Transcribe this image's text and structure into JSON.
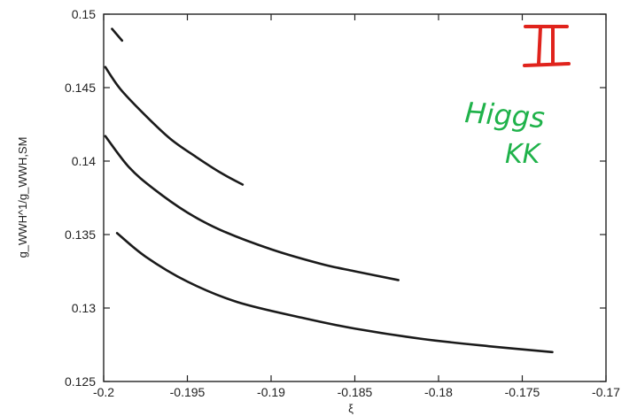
{
  "chart_data": {
    "type": "line",
    "title": "",
    "ylabel": "g_WWH^1/g_WWH,SM",
    "xlabel": "ξ",
    "xlim": [
      -0.2,
      -0.17
    ],
    "ylim": [
      0.125,
      0.15
    ],
    "xticks": [
      "-0.2",
      "-0.195",
      "-0.19",
      "-0.185",
      "-0.18",
      "-0.175",
      "-0.17"
    ],
    "yticks": [
      "0.125",
      "0.13",
      "0.135",
      "0.14",
      "0.145",
      "0.15"
    ],
    "grid": false,
    "legend": "none",
    "series": [
      {
        "x": [
          -0.1995,
          -0.1989
        ],
        "values": [
          0.149,
          0.1482
        ]
      },
      {
        "x": [
          -0.1999,
          -0.199,
          -0.1975,
          -0.196,
          -0.1945,
          -0.193,
          -0.1917
        ],
        "values": [
          0.1464,
          0.1449,
          0.1431,
          0.1415,
          0.1403,
          0.1392,
          0.1384
        ]
      },
      {
        "x": [
          -0.1999,
          -0.1985,
          -0.197,
          -0.195,
          -0.193,
          -0.19,
          -0.187,
          -0.185,
          -0.1824
        ],
        "values": [
          0.1417,
          0.1396,
          0.1381,
          0.1365,
          0.1353,
          0.134,
          0.133,
          0.1325,
          0.1319
        ]
      },
      {
        "x": [
          -0.1992,
          -0.1975,
          -0.195,
          -0.192,
          -0.188,
          -0.185,
          -0.181,
          -0.177,
          -0.1732
        ],
        "values": [
          0.1351,
          0.1335,
          0.1318,
          0.1304,
          0.1293,
          0.1286,
          0.1279,
          0.1274,
          0.127
        ]
      }
    ]
  },
  "annotations": {
    "roman_numeral": "II",
    "handwritten_line1": "Higgs",
    "handwritten_line2": "KK",
    "numeral_color": "#e0231c",
    "note_color": "#1fb24a"
  }
}
